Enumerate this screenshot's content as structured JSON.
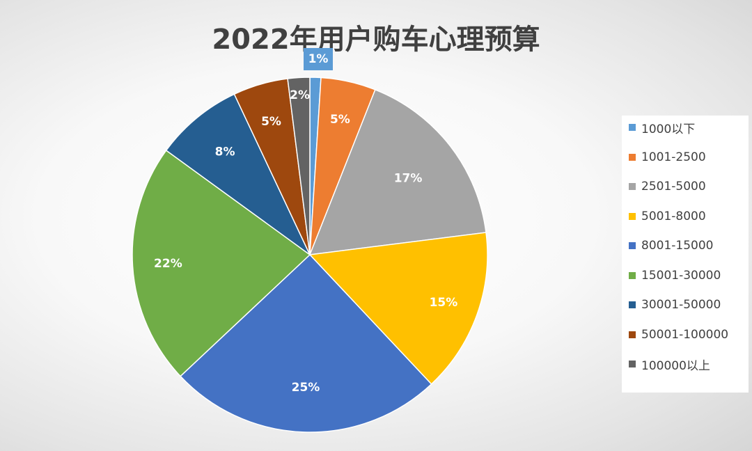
{
  "chart_data": {
    "type": "pie",
    "title": "2022年用户购车心理预算",
    "categories": [
      "1000以下",
      "1001-2500",
      "2501-5000",
      "5001-8000",
      "8001-15000",
      "15001-30000",
      "30001-50000",
      "50001-100000",
      "100000以上"
    ],
    "values": [
      1,
      5,
      17,
      15,
      25,
      22,
      8,
      5,
      2
    ],
    "labels": [
      "1%",
      "5%",
      "17%",
      "15%",
      "25%",
      "22%",
      "8%",
      "5%",
      "2%"
    ],
    "colors": [
      "#5B9BD5",
      "#ED7D31",
      "#A5A5A5",
      "#FFC000",
      "#4472C4",
      "#70AD47",
      "#255E91",
      "#9E480E",
      "#636363"
    ],
    "legend_position": "right"
  }
}
